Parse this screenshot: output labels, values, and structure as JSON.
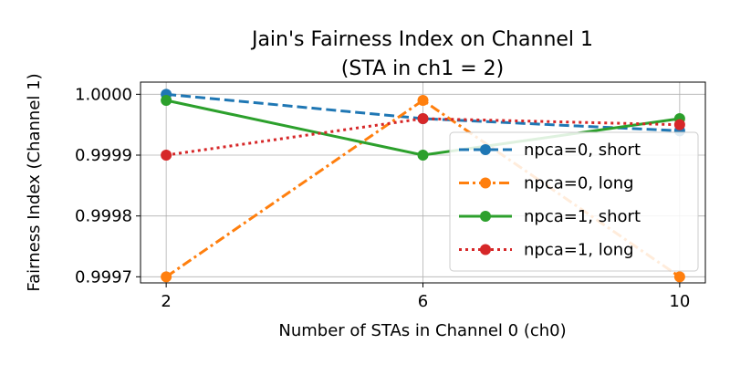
{
  "chart_data": {
    "type": "line",
    "title_line1": "Jain's Fairness Index on Channel 1",
    "title_line2": "(STA in ch1 = 2)",
    "xlabel": "Number of STAs in Channel 0 (ch0)",
    "ylabel": "Fairness Index (Channel 1)",
    "x": [
      2,
      6,
      10
    ],
    "xticks": [
      "2",
      "6",
      "10"
    ],
    "yticks": [
      {
        "value": 0.9997,
        "label": "0.9997"
      },
      {
        "value": 0.9998,
        "label": "0.9998"
      },
      {
        "value": 0.9999,
        "label": "0.9999"
      },
      {
        "value": 1.0,
        "label": "1.0000"
      }
    ],
    "xlim": [
      1.6,
      10.4
    ],
    "ylim": [
      0.99969,
      1.00002
    ],
    "grid": true,
    "legend_position": "right",
    "series": [
      {
        "name": "npca=0, short",
        "values": [
          1.0,
          0.99996,
          0.99994
        ],
        "color": "#1f77b4",
        "linestyle": "dashed"
      },
      {
        "name": "npca=0, long",
        "values": [
          0.9997,
          0.99999,
          0.9997
        ],
        "color": "#ff7f0e",
        "linestyle": "dashdot"
      },
      {
        "name": "npca=1, short",
        "values": [
          0.99999,
          0.9999,
          0.99996
        ],
        "color": "#2ca02c",
        "linestyle": "solid"
      },
      {
        "name": "npca=1, long",
        "values": [
          0.9999,
          0.99996,
          0.99995
        ],
        "color": "#d62728",
        "linestyle": "dotted"
      }
    ]
  }
}
